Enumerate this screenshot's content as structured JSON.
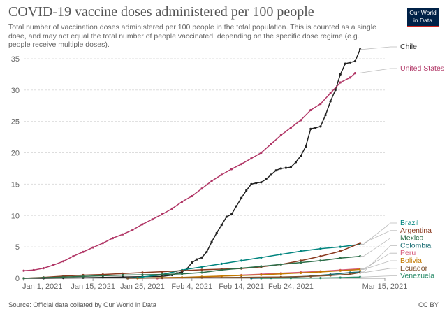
{
  "chart_data": {
    "type": "line",
    "title": "COVID-19 vaccine doses administered per 100 people",
    "subtitle": "Total number of vaccination doses administered per 100 people in the total population. This is counted as a single dose, and may not equal the total number of people vaccinated, depending on the specific dose regime (e.g. people receive multiple doses).",
    "x_tick_labels": [
      "Jan 1, 2021",
      "Jan 15, 2021",
      "Jan 25, 2021",
      "Feb 4, 2021",
      "Feb 14, 2021",
      "Feb 24, 2021",
      "Mar 15, 2021"
    ],
    "x_tick_days": [
      0,
      14,
      24,
      34,
      44,
      54,
      73
    ],
    "xlim": [
      0,
      73
    ],
    "ylim": [
      0,
      37
    ],
    "y_ticks": [
      0,
      5,
      10,
      15,
      20,
      25,
      30,
      35
    ],
    "series": [
      {
        "name": "Chile",
        "color": "#222222",
        "points": [
          [
            0,
            0
          ],
          [
            4,
            0
          ],
          [
            8,
            0.05
          ],
          [
            12,
            0.08
          ],
          [
            16,
            0.15
          ],
          [
            20,
            0.2
          ],
          [
            24,
            0.25
          ],
          [
            28,
            0.3
          ],
          [
            30,
            0.5
          ],
          [
            31,
            0.8
          ],
          [
            32,
            1.0
          ],
          [
            33,
            1.5
          ],
          [
            34,
            2.5
          ],
          [
            35,
            3.0
          ],
          [
            36,
            3.3
          ],
          [
            37,
            4.2
          ],
          [
            38,
            5.8
          ],
          [
            39,
            7.2
          ],
          [
            40,
            8.5
          ],
          [
            41,
            9.8
          ],
          [
            42,
            10.2
          ],
          [
            43,
            11.5
          ],
          [
            44,
            12.8
          ],
          [
            45,
            14.0
          ],
          [
            46,
            15.0
          ],
          [
            47,
            15.2
          ],
          [
            48,
            15.3
          ],
          [
            49,
            15.8
          ],
          [
            50,
            16.5
          ],
          [
            51,
            17.2
          ],
          [
            52,
            17.5
          ],
          [
            53,
            17.6
          ],
          [
            54,
            17.7
          ],
          [
            55,
            18.5
          ],
          [
            56,
            19.5
          ],
          [
            57,
            21.0
          ],
          [
            58,
            23.8
          ],
          [
            59,
            24.0
          ],
          [
            60,
            24.2
          ],
          [
            61,
            26.0
          ],
          [
            62,
            28.2
          ],
          [
            63,
            30.0
          ],
          [
            64,
            32.5
          ],
          [
            65,
            34.2
          ],
          [
            66,
            34.4
          ],
          [
            67,
            34.6
          ],
          [
            68,
            36.5
          ]
        ]
      },
      {
        "name": "United States",
        "color": "#b13666",
        "points": [
          [
            0,
            1.2
          ],
          [
            2,
            1.3
          ],
          [
            4,
            1.6
          ],
          [
            6,
            2.1
          ],
          [
            8,
            2.7
          ],
          [
            10,
            3.5
          ],
          [
            12,
            4.2
          ],
          [
            14,
            4.9
          ],
          [
            16,
            5.6
          ],
          [
            18,
            6.4
          ],
          [
            20,
            7.0
          ],
          [
            22,
            7.7
          ],
          [
            24,
            8.6
          ],
          [
            26,
            9.4
          ],
          [
            28,
            10.2
          ],
          [
            30,
            11.1
          ],
          [
            32,
            12.2
          ],
          [
            34,
            13.1
          ],
          [
            36,
            14.3
          ],
          [
            38,
            15.5
          ],
          [
            40,
            16.5
          ],
          [
            42,
            17.4
          ],
          [
            44,
            18.2
          ],
          [
            46,
            19.1
          ],
          [
            48,
            20.0
          ],
          [
            50,
            21.4
          ],
          [
            52,
            22.8
          ],
          [
            54,
            24.0
          ],
          [
            56,
            25.2
          ],
          [
            58,
            26.8
          ],
          [
            60,
            27.8
          ],
          [
            62,
            29.5
          ],
          [
            64,
            31.2
          ],
          [
            66,
            32.0
          ],
          [
            67,
            32.7
          ]
        ]
      },
      {
        "name": "Brazil",
        "color": "#00847e",
        "points": [
          [
            21,
            0
          ],
          [
            24,
            0.2
          ],
          [
            28,
            0.6
          ],
          [
            32,
            1.3
          ],
          [
            36,
            1.8
          ],
          [
            40,
            2.3
          ],
          [
            44,
            2.8
          ],
          [
            48,
            3.3
          ],
          [
            52,
            3.8
          ],
          [
            56,
            4.3
          ],
          [
            60,
            4.7
          ],
          [
            64,
            5.0
          ],
          [
            68,
            5.4
          ]
        ]
      },
      {
        "name": "Argentina",
        "color": "#8a3a1f",
        "points": [
          [
            0,
            0
          ],
          [
            4,
            0.15
          ],
          [
            8,
            0.35
          ],
          [
            12,
            0.5
          ],
          [
            16,
            0.6
          ],
          [
            20,
            0.75
          ],
          [
            24,
            0.9
          ],
          [
            28,
            1.05
          ],
          [
            32,
            1.2
          ],
          [
            36,
            1.35
          ],
          [
            40,
            1.45
          ],
          [
            44,
            1.55
          ],
          [
            48,
            1.8
          ],
          [
            52,
            2.2
          ],
          [
            56,
            2.8
          ],
          [
            60,
            3.5
          ],
          [
            64,
            4.3
          ],
          [
            68,
            5.6
          ]
        ]
      },
      {
        "name": "Mexico",
        "color": "#2c6e49",
        "points": [
          [
            0,
            0
          ],
          [
            4,
            0.1
          ],
          [
            8,
            0.2
          ],
          [
            12,
            0.3
          ],
          [
            16,
            0.4
          ],
          [
            20,
            0.5
          ],
          [
            24,
            0.55
          ],
          [
            28,
            0.6
          ],
          [
            32,
            0.7
          ],
          [
            36,
            0.9
          ],
          [
            40,
            1.3
          ],
          [
            44,
            1.6
          ],
          [
            48,
            1.9
          ],
          [
            52,
            2.2
          ],
          [
            56,
            2.5
          ],
          [
            60,
            2.8
          ],
          [
            64,
            3.2
          ],
          [
            68,
            3.5
          ]
        ]
      },
      {
        "name": "Colombia",
        "color": "#1a6d73",
        "points": [
          [
            46,
            0
          ],
          [
            50,
            0.05
          ],
          [
            54,
            0.15
          ],
          [
            58,
            0.35
          ],
          [
            62,
            0.6
          ],
          [
            66,
            0.9
          ],
          [
            68,
            1.0
          ]
        ]
      },
      {
        "name": "Peru",
        "color": "#d6597a",
        "points": [
          [
            27,
            0
          ],
          [
            32,
            0.1
          ],
          [
            36,
            0.2
          ],
          [
            40,
            0.35
          ],
          [
            44,
            0.5
          ],
          [
            48,
            0.65
          ],
          [
            52,
            0.8
          ],
          [
            56,
            0.95
          ],
          [
            60,
            1.1
          ],
          [
            64,
            1.3
          ],
          [
            68,
            1.5
          ]
        ]
      },
      {
        "name": "Bolivia",
        "color": "#c47a00",
        "points": [
          [
            23,
            0
          ],
          [
            28,
            0.1
          ],
          [
            32,
            0.15
          ],
          [
            36,
            0.25
          ],
          [
            40,
            0.35
          ],
          [
            44,
            0.45
          ],
          [
            48,
            0.55
          ],
          [
            52,
            0.7
          ],
          [
            56,
            0.85
          ],
          [
            60,
            1.0
          ],
          [
            64,
            1.2
          ],
          [
            68,
            1.4
          ]
        ]
      },
      {
        "name": "Ecuador",
        "color": "#7b4f2c",
        "points": [
          [
            21,
            0
          ],
          [
            28,
            0.05
          ],
          [
            36,
            0.1
          ],
          [
            44,
            0.15
          ],
          [
            52,
            0.2
          ],
          [
            58,
            0.3
          ],
          [
            62,
            0.45
          ],
          [
            66,
            0.65
          ],
          [
            68,
            0.9
          ]
        ]
      },
      {
        "name": "Venezuela",
        "color": "#2b8c6a",
        "points": [
          [
            48,
            0
          ],
          [
            54,
            0.02
          ],
          [
            60,
            0.05
          ],
          [
            64,
            0.1
          ],
          [
            68,
            0.2
          ]
        ]
      }
    ],
    "labels": [
      "Chile",
      "United States",
      "Brazil",
      "Argentina",
      "Mexico",
      "Colombia",
      "Peru",
      "Bolivia",
      "Ecuador",
      "Venezuela"
    ]
  },
  "logo": {
    "line1": "Our World",
    "line2": "in Data"
  },
  "footer": {
    "source": "Source: Official data collated by Our World in Data",
    "license": "CC BY"
  }
}
